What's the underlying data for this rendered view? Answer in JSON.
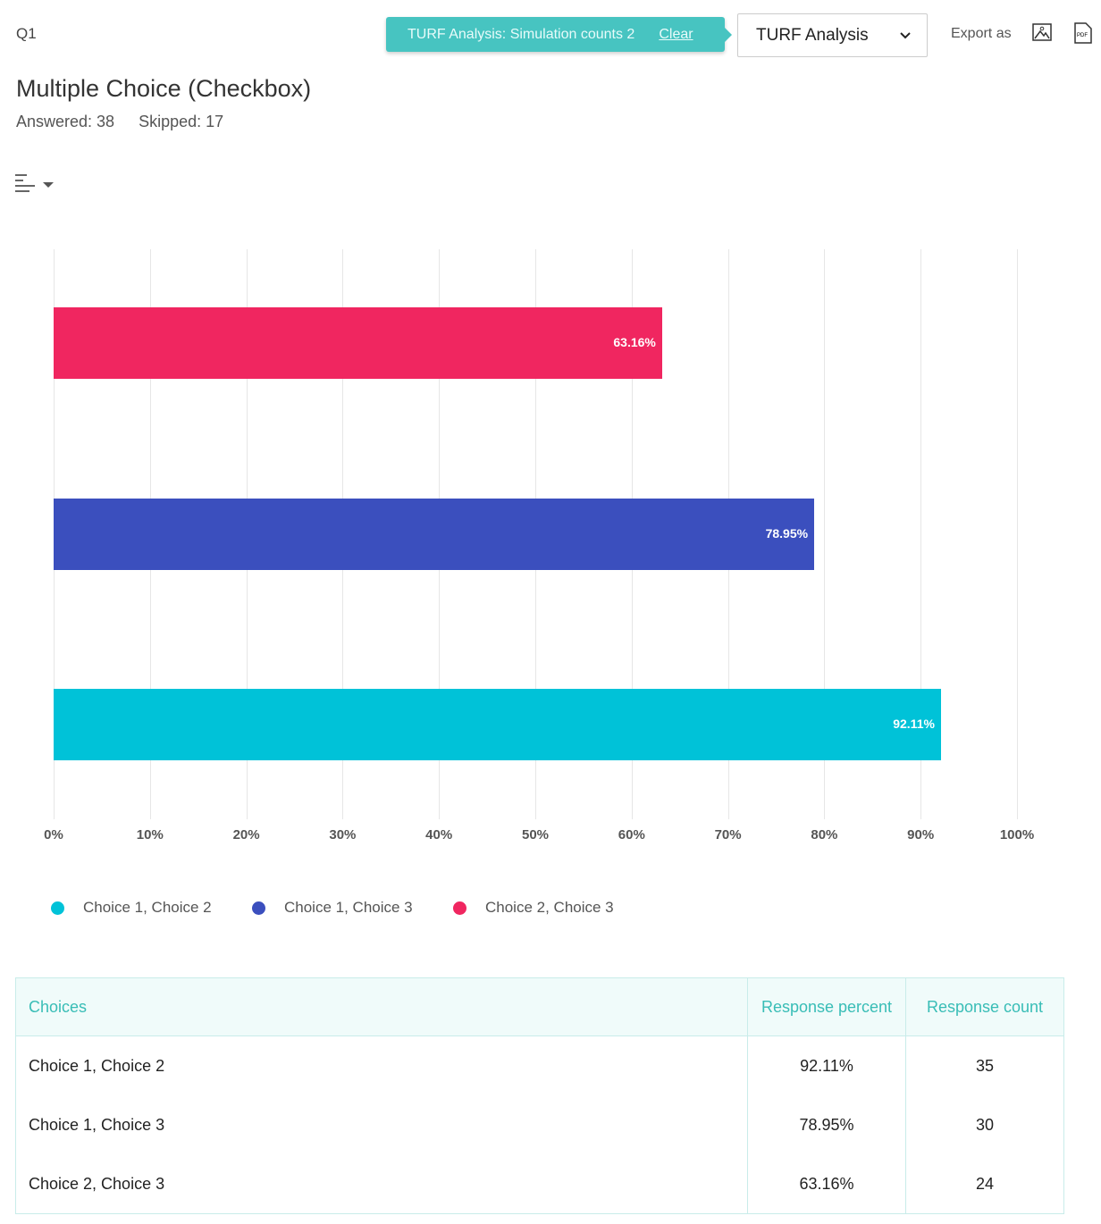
{
  "header": {
    "question": "Q1",
    "banner_text": "TURF Analysis: Simulation counts 2",
    "banner_clear": "Clear",
    "analysis_select": "TURF Analysis",
    "export_label": "Export as",
    "export_icons": [
      "image-icon",
      "pdf-icon"
    ]
  },
  "question": {
    "title": "Multiple Choice (Checkbox)",
    "answered": "Answered: 38",
    "skipped": "Skipped: 17"
  },
  "chart_data": {
    "type": "bar",
    "orientation": "horizontal",
    "categories": [
      "Choice 2, Choice 3",
      "Choice 1, Choice 3",
      "Choice 1, Choice 2"
    ],
    "values": [
      63.16,
      78.95,
      92.11
    ],
    "data_labels": [
      "63.16%",
      "78.95%",
      "92.11%"
    ],
    "colors": [
      "#f02660",
      "#3b4fbe",
      "#00c2d8"
    ],
    "xlim": [
      0,
      100
    ],
    "ticks": [
      "0%",
      "10%",
      "20%",
      "30%",
      "40%",
      "50%",
      "60%",
      "70%",
      "80%",
      "90%",
      "100%"
    ],
    "grid": true,
    "legend_placement": "bottom-left",
    "legend": [
      {
        "name": "Choice 1, Choice 2",
        "color": "#00c2d8"
      },
      {
        "name": "Choice 1, Choice 3",
        "color": "#3b4fbe"
      },
      {
        "name": "Choice 2, Choice 3",
        "color": "#f02660"
      }
    ]
  },
  "table": {
    "headers": [
      "Choices",
      "Response percent",
      "Response count"
    ],
    "rows": [
      [
        "Choice 1, Choice 2",
        "92.11%",
        "35"
      ],
      [
        "Choice 1, Choice 3",
        "78.95%",
        "30"
      ],
      [
        "Choice 2, Choice 3",
        "63.16%",
        "24"
      ]
    ]
  }
}
